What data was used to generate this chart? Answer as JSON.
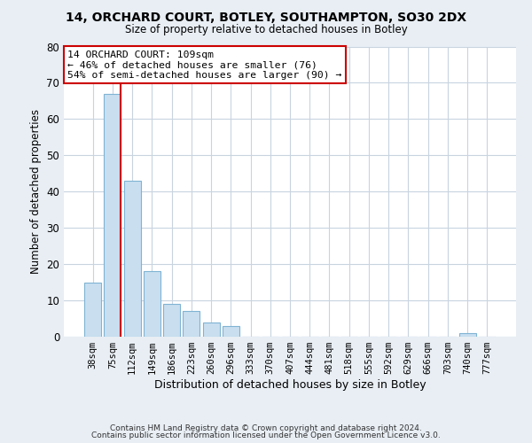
{
  "title": "14, ORCHARD COURT, BOTLEY, SOUTHAMPTON, SO30 2DX",
  "subtitle": "Size of property relative to detached houses in Botley",
  "xlabel": "Distribution of detached houses by size in Botley",
  "ylabel": "Number of detached properties",
  "bar_labels": [
    "38sqm",
    "75sqm",
    "112sqm",
    "149sqm",
    "186sqm",
    "223sqm",
    "260sqm",
    "296sqm",
    "333sqm",
    "370sqm",
    "407sqm",
    "444sqm",
    "481sqm",
    "518sqm",
    "555sqm",
    "592sqm",
    "629sqm",
    "666sqm",
    "703sqm",
    "740sqm",
    "777sqm"
  ],
  "bar_values": [
    15,
    67,
    43,
    18,
    9,
    7,
    4,
    3,
    0,
    0,
    0,
    0,
    0,
    0,
    0,
    0,
    0,
    0,
    0,
    1,
    0
  ],
  "bar_color": "#c9dff0",
  "bar_edge_color": "#7fb3d3",
  "vline_color": "#cc0000",
  "vline_pos": 1.425,
  "ylim": [
    0,
    80
  ],
  "yticks": [
    0,
    10,
    20,
    30,
    40,
    50,
    60,
    70,
    80
  ],
  "annotation_title": "14 ORCHARD COURT: 109sqm",
  "annotation_line1": "← 46% of detached houses are smaller (76)",
  "annotation_line2": "54% of semi-detached houses are larger (90) →",
  "annotation_box_color": "#ffffff",
  "annotation_box_edge": "#cc0000",
  "footer1": "Contains HM Land Registry data © Crown copyright and database right 2024.",
  "footer2": "Contains public sector information licensed under the Open Government Licence v3.0.",
  "bg_color": "#e8eef4",
  "plot_bg_color": "#ffffff",
  "grid_color": "#c8d4e0"
}
